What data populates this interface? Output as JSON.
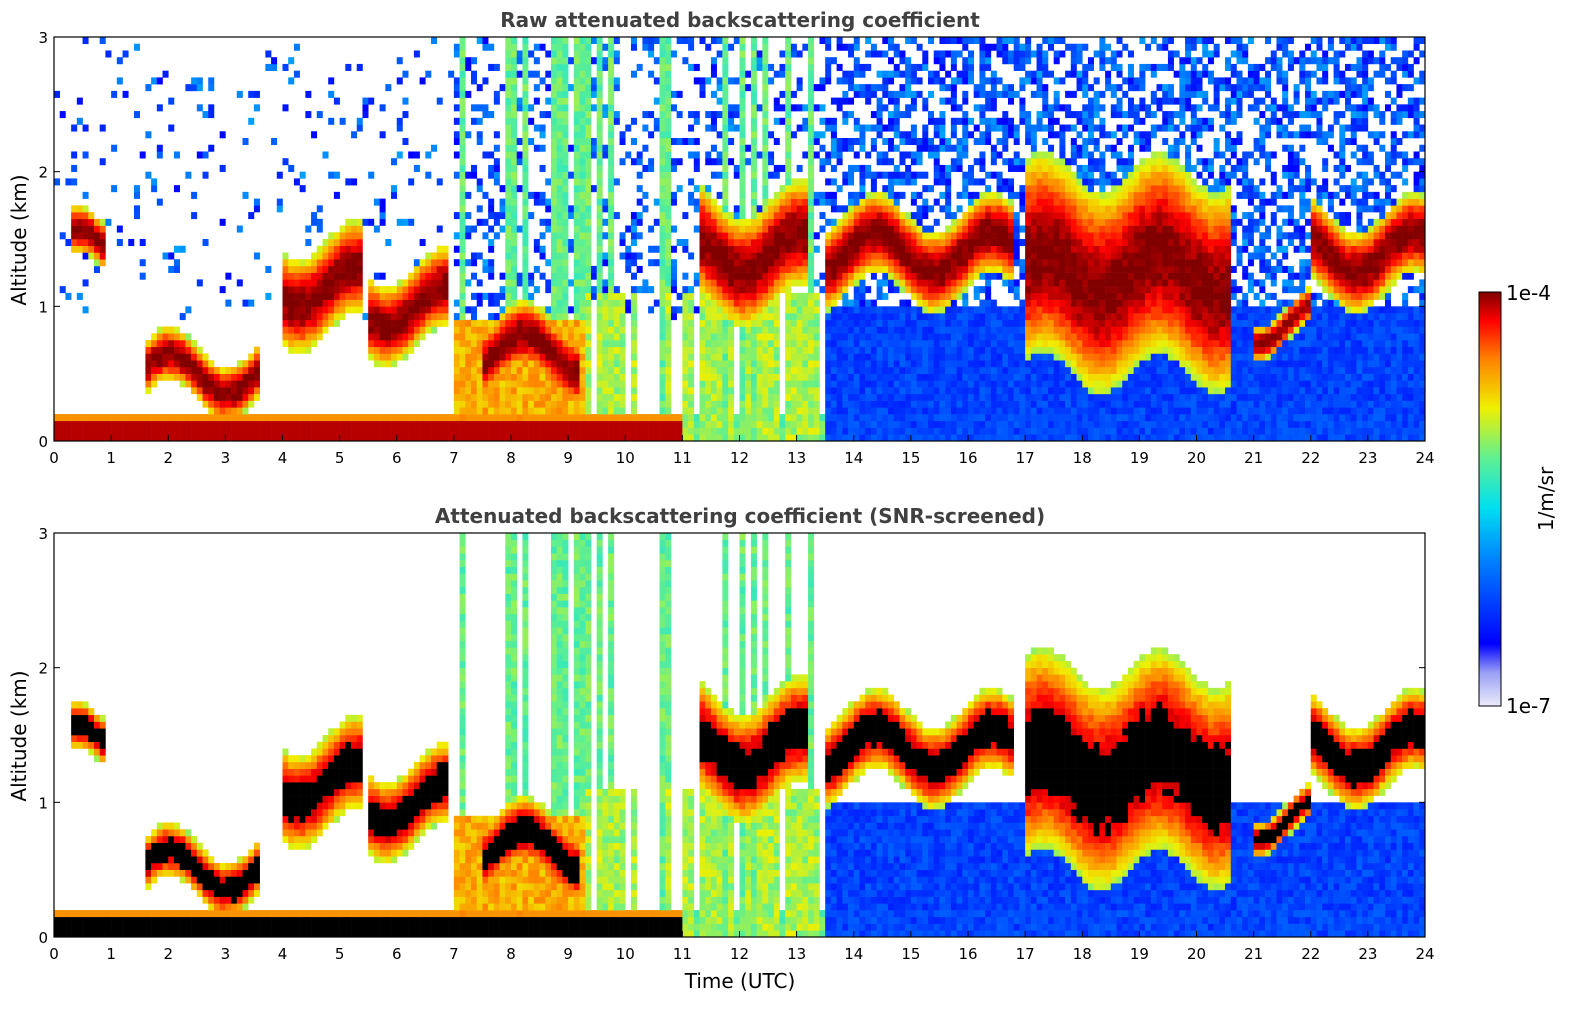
{
  "chart_data": [
    {
      "type": "heatmap",
      "title": "Raw attenuated backscattering coefficient",
      "xlabel": "",
      "ylabel": "Altitude (km)",
      "xlim": [
        0,
        24
      ],
      "ylim": [
        0,
        3
      ],
      "xticks": [
        "0",
        "1",
        "2",
        "3",
        "4",
        "5",
        "6",
        "7",
        "8",
        "9",
        "10",
        "11",
        "12",
        "13",
        "14",
        "15",
        "16",
        "17",
        "18",
        "19",
        "20",
        "21",
        "22",
        "23",
        "24"
      ],
      "yticks": [
        "0",
        "1",
        "2",
        "3"
      ],
      "colorscale": "jet",
      "screened": false
    },
    {
      "type": "heatmap",
      "title": "Attenuated backscattering coefficient (SNR-screened)",
      "xlabel": "Time (UTC)",
      "ylabel": "Altitude (km)",
      "xlim": [
        0,
        24
      ],
      "ylim": [
        0,
        3
      ],
      "xticks": [
        "0",
        "1",
        "2",
        "3",
        "4",
        "5",
        "6",
        "7",
        "8",
        "9",
        "10",
        "11",
        "12",
        "13",
        "14",
        "15",
        "16",
        "17",
        "18",
        "19",
        "20",
        "21",
        "22",
        "23",
        "24"
      ],
      "yticks": [
        "0",
        "1",
        "2",
        "3"
      ],
      "colorscale": "jet",
      "screened": true
    }
  ],
  "colorbar": {
    "label": "1/m/sr",
    "max_label": "1e-4",
    "min_label": "1e-7",
    "scale": "log",
    "range": [
      1e-07,
      0.0001
    ]
  },
  "features": {
    "surface_layer_end": 11,
    "cloud_bands": [
      {
        "t0": 0.3,
        "t1": 0.9,
        "z0": 1.25,
        "z1": 1.6
      },
      {
        "t0": 1.6,
        "t1": 3.6,
        "z0": 0.3,
        "z1": 0.7
      },
      {
        "t0": 4.0,
        "t1": 5.4,
        "z0": 0.8,
        "z1": 1.5
      },
      {
        "t0": 5.5,
        "t1": 6.9,
        "z0": 0.7,
        "z1": 1.3
      },
      {
        "t0": 7.5,
        "t1": 9.2,
        "z0": 0.4,
        "z1": 0.9
      },
      {
        "t0": 11.3,
        "t1": 13.2,
        "z0": 1.0,
        "z1": 1.8
      },
      {
        "t0": 13.5,
        "t1": 16.8,
        "z0": 1.1,
        "z1": 1.7
      },
      {
        "t0": 17.0,
        "t1": 20.6,
        "z0": 0.5,
        "z1": 2.0
      },
      {
        "t0": 21.0,
        "t1": 22.0,
        "z0": 0.75,
        "z1": 1.0
      },
      {
        "t0": 22.0,
        "t1": 24.0,
        "z0": 1.1,
        "z1": 1.7
      }
    ]
  }
}
